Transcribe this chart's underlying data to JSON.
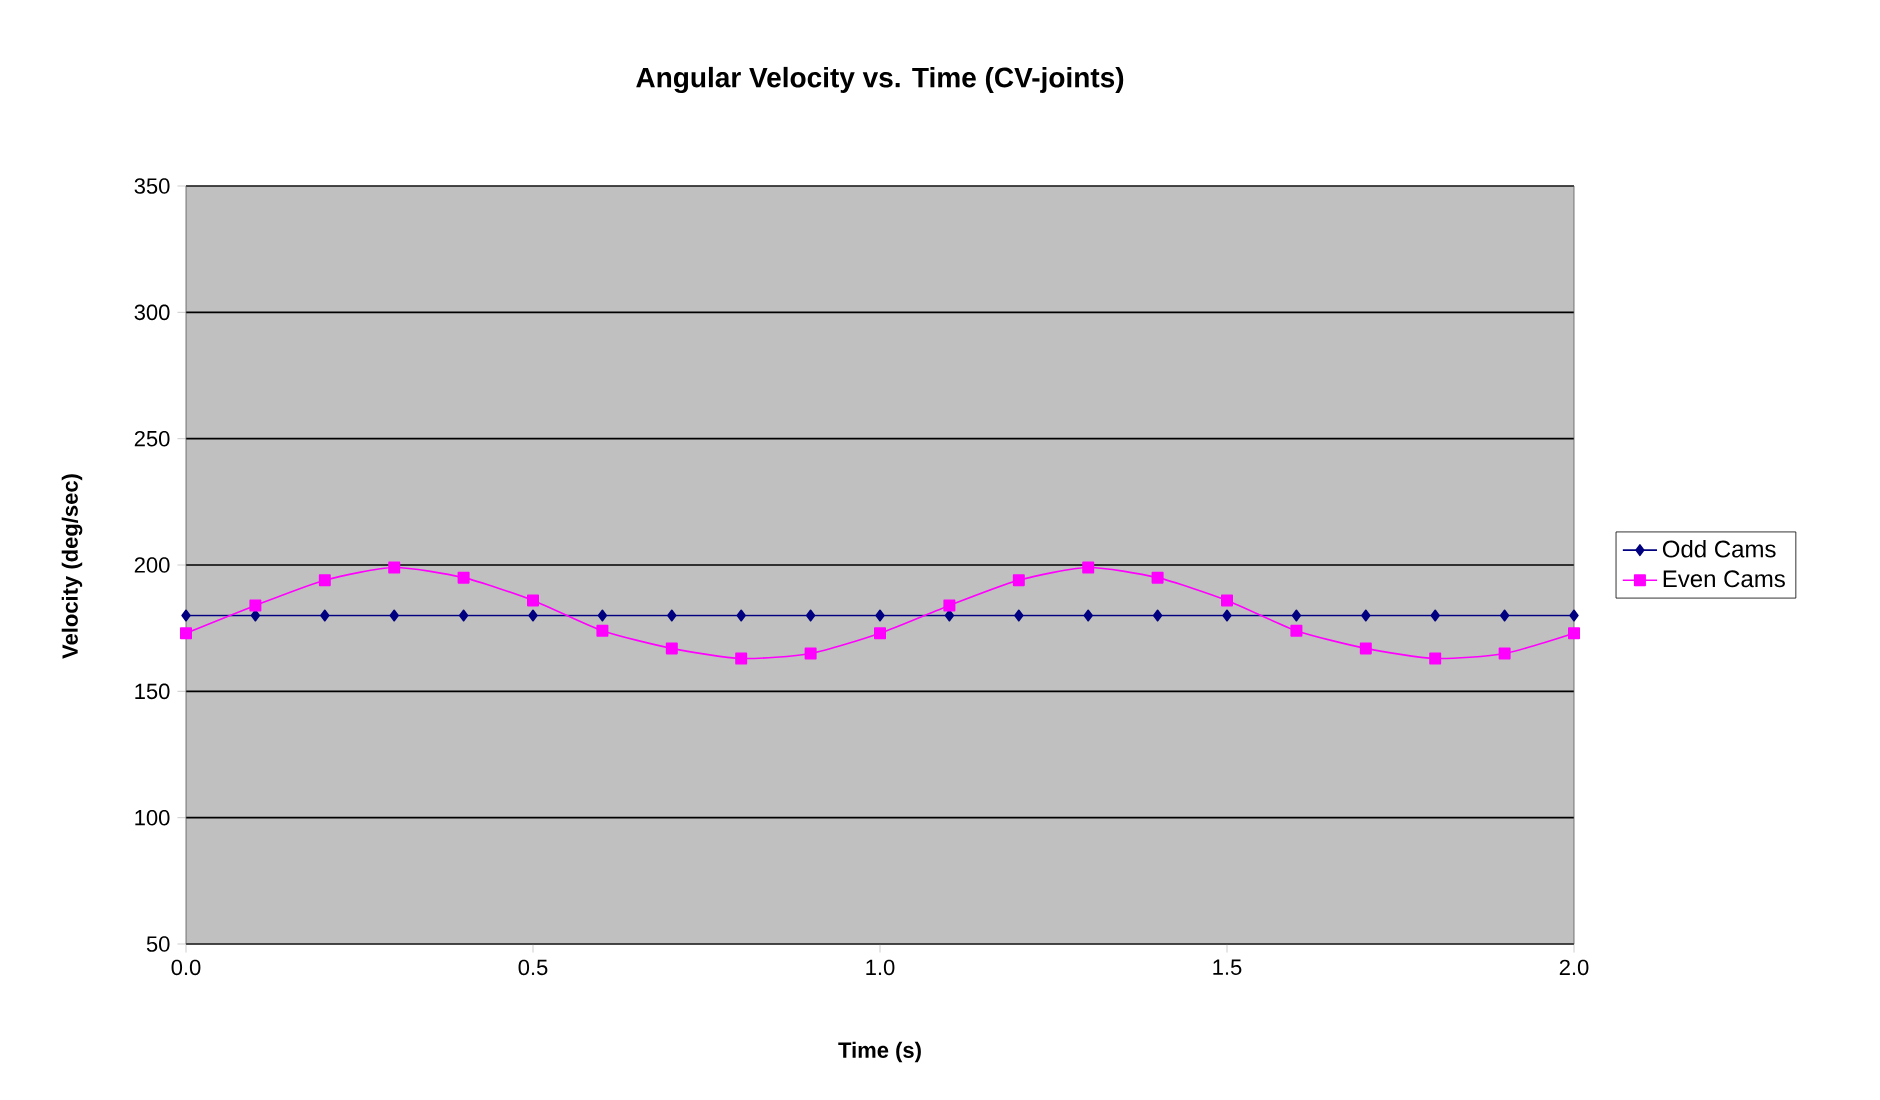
{
  "chart_data": {
    "type": "line",
    "title": "Angular Velocity vs. Time (CV-joints)",
    "xlabel": "Time (s)",
    "ylabel": "Velocity (deg/sec)",
    "x": [
      0,
      0.1,
      0.2,
      0.3,
      0.4,
      0.5,
      0.6,
      0.7,
      0.8,
      0.9,
      1.0,
      1.1,
      1.2,
      1.3,
      1.4,
      1.5,
      1.6,
      1.7,
      1.8,
      1.9,
      2.0
    ],
    "series": [
      {
        "name": "Odd Cams",
        "color": "#000080",
        "marker": "diamond",
        "values": [
          180,
          180,
          180,
          180,
          180,
          180,
          180,
          180,
          180,
          180,
          180,
          180,
          180,
          180,
          180,
          180,
          180,
          180,
          180,
          180,
          180
        ]
      },
      {
        "name": "Even Cams",
        "color": "#ff00ff",
        "marker": "square",
        "values": [
          173,
          184,
          194,
          199,
          195,
          186,
          174,
          167,
          163,
          165,
          173,
          184,
          194,
          199,
          195,
          186,
          174,
          167,
          163,
          165,
          173
        ]
      }
    ],
    "xlim": [
      0,
      2
    ],
    "xticks": [
      {
        "value": 0,
        "label": "0.0"
      },
      {
        "value": 0.5,
        "label": "0.5"
      },
      {
        "value": 1,
        "label": "1.0"
      },
      {
        "value": 1.5,
        "label": "1.5"
      },
      {
        "value": 2,
        "label": "2.0"
      }
    ],
    "ylim": [
      50,
      350
    ],
    "yticks": [
      50,
      100,
      150,
      200,
      250,
      300,
      350
    ],
    "grid": "y",
    "legend": "right"
  }
}
